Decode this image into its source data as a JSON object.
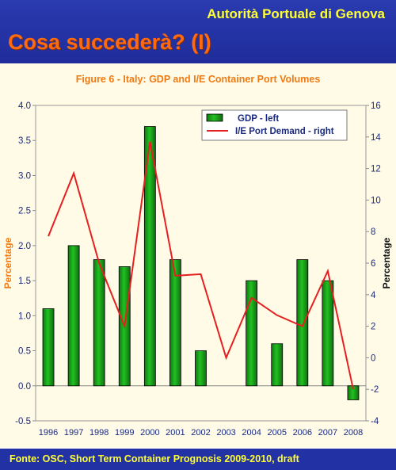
{
  "header": {
    "org_name": "Autorità Portuale di Genova",
    "slide_title": "Cosa succederà? (I)"
  },
  "footer": {
    "source": "Fonte: OSC, Short Term Container Prognosis 2009-2010, draft"
  },
  "colors": {
    "bar_fill": "#22c022",
    "line": "#e62020",
    "axis_label": "#f07a14",
    "tick_text": "#1a2a80"
  },
  "chart_data": {
    "type": "bar",
    "title": "Figure 6 - Italy:  GDP and I/E Container Port Volumes",
    "categories": [
      "1996",
      "1997",
      "1998",
      "1999",
      "2000",
      "2001",
      "2002",
      "2003",
      "2004",
      "2005",
      "2006",
      "2007",
      "2008"
    ],
    "series": [
      {
        "name": "GDP - left",
        "type": "bar",
        "axis": "left",
        "values": [
          1.1,
          2.0,
          1.8,
          1.7,
          3.7,
          1.8,
          0.5,
          null,
          1.5,
          0.6,
          1.8,
          1.5,
          -0.2
        ]
      },
      {
        "name": "I/E Port Demand - right",
        "type": "line",
        "axis": "right",
        "values": [
          7.7,
          11.7,
          6.0,
          2.0,
          13.7,
          5.2,
          5.3,
          0.0,
          3.8,
          2.7,
          2.0,
          5.5,
          -2.0
        ]
      }
    ],
    "ylabel": "Percentage",
    "ylabel_right": "Percentage",
    "ylim": [
      -0.5,
      4.0
    ],
    "ylim_right": [
      -4,
      16
    ],
    "yticks": [
      "-0.5",
      "0.0",
      "0.5",
      "1.0",
      "1.5",
      "2.0",
      "2.5",
      "3.0",
      "3.5",
      "4.0"
    ],
    "yticks_right": [
      "-4",
      "-2",
      "0",
      "2",
      "4",
      "6",
      "8",
      "10",
      "12",
      "14",
      "16"
    ],
    "grid": false,
    "legend": "top-right"
  }
}
